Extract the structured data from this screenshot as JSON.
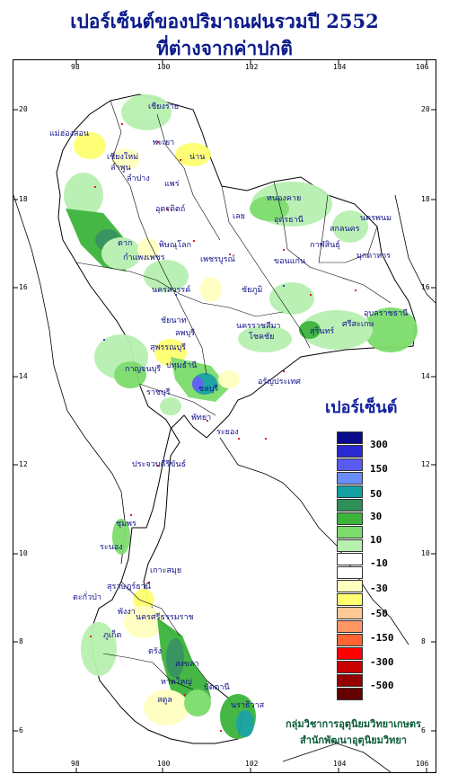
{
  "title_line1": "เปอร์เซ็นต์ของปริมาณฝนรวมปี 2552",
  "title_line2": "ที่ต่างจากค่าปกติ",
  "legend": {
    "title": "เปอร์เซ็นต์",
    "colors": [
      "#0a0a8c",
      "#2a2ad0",
      "#5a5af0",
      "#6a8cf8",
      "#14a0a0",
      "#2f8f5a",
      "#3cb43c",
      "#7cdc6c",
      "#b8f0b0",
      "#ffffff",
      "#ffffff",
      "#ffffc0",
      "#ffff70",
      "#ffc896",
      "#ff9664",
      "#ff6432",
      "#ff0000",
      "#c80000",
      "#960000",
      "#640000"
    ],
    "labels": [
      "300",
      "150",
      "50",
      "30",
      "10",
      "-10",
      "-30",
      "-50",
      "-150",
      "-300",
      "-500"
    ]
  },
  "axis_top": [
    "98",
    "100",
    "102",
    "104",
    "106"
  ],
  "axis_bottom": [
    "98",
    "100",
    "102",
    "104",
    "106"
  ],
  "axis_left": [
    "20",
    "18",
    "16",
    "14",
    "12",
    "10",
    "8",
    "6"
  ],
  "axis_right": [
    "20",
    "18",
    "16",
    "14",
    "12",
    "10",
    "8",
    "6"
  ],
  "provinces": [
    "เชียงราย",
    "แม่ฮ่องสอน",
    "พะเยา",
    "เชียงใหม่",
    "น่าน",
    "ลำพูน",
    "ลำปาง",
    "แพร่",
    "หนองคาย",
    "อุตรดิตถ์",
    "สกลนคร",
    "นครพนม",
    "ตาก",
    "เลย",
    "อุดรธานี",
    "พิษณุโลก",
    "กาฬสินธุ์",
    "มุกดาหาร",
    "กำแพงเพชร",
    "เพชรบูรณ์",
    "ขอนแก่น",
    "นครสวรรค์",
    "ชัยภูมิ",
    "อุบลราชธานี",
    "ชัยนาท",
    "นครราชสีมา",
    "สุรินทร์",
    "ศรีสะเกษ",
    "ลพบุรี",
    "สุพรรณบุรี",
    "โชคชัย",
    "กาญจนบุรี",
    "ปทุมธานี",
    "อรัญประเทศ",
    "ราชบุรี",
    "ชลบุรี",
    "ระยอง",
    "พัทยา",
    "ประจวบคีรีขันธ์",
    "ชุมพร",
    "ระนอง",
    "เกาะสมุย",
    "สุราษฎร์ธานี",
    "ตะกั่วป่า",
    "พังงา",
    "นครศรีธรรมราช",
    "ภูเก็ต",
    "ตรัง",
    "สงขลา",
    "หาดใหญ่",
    "ปัตตานี",
    "สตูล",
    "นราธิวาส"
  ],
  "credit_line1": "กลุ่มวิชาการอุตุนิยมวิทยาเกษตร",
  "credit_line2": "สำนักพัฒนาอุตุนิยมวิทยา",
  "icons": [
    "station-marker-icon"
  ]
}
